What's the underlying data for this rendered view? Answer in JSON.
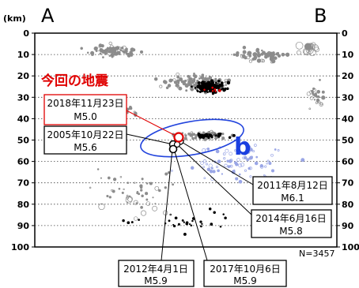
{
  "chart_data": {
    "type": "scatter",
    "title": "",
    "xlabel": "",
    "ylabel": "(km)",
    "section_start_label": "A",
    "section_end_label": "B",
    "ylim": [
      0,
      100
    ],
    "y_reversed": true,
    "y_ticks": [
      0,
      10,
      20,
      30,
      40,
      50,
      60,
      70,
      80,
      90,
      100
    ],
    "grid": "dotted horizontal lines every 10 km",
    "total_count_label": "N=3457",
    "current_event_label": "今回の地震",
    "region_label": "b",
    "colors": {
      "recent_events": "#000000",
      "older_events": "#8c8c8c",
      "deep_scatter": "#9aa6e6",
      "highlight": "#e00000",
      "region_ellipse": "#2244dd",
      "region_label": "#1a3fe0"
    },
    "notable_events": [
      {
        "date": "2018年11月23日",
        "magnitude": "M5.0",
        "depth_km": 49,
        "is_current": true
      },
      {
        "date": "2005年10月22日",
        "magnitude": "M5.6",
        "depth_km": 50,
        "is_current": false
      },
      {
        "date": "2011年8月12日",
        "magnitude": "M6.1",
        "depth_km": 51,
        "is_current": false
      },
      {
        "date": "2014年6月16日",
        "magnitude": "M5.8",
        "depth_km": 50,
        "is_current": false
      },
      {
        "date": "2012年4月1日",
        "magnitude": "M5.9",
        "depth_km": 53,
        "is_current": false
      },
      {
        "date": "2017年10月6日",
        "magnitude": "M5.9",
        "depth_km": 52,
        "is_current": false
      }
    ]
  }
}
